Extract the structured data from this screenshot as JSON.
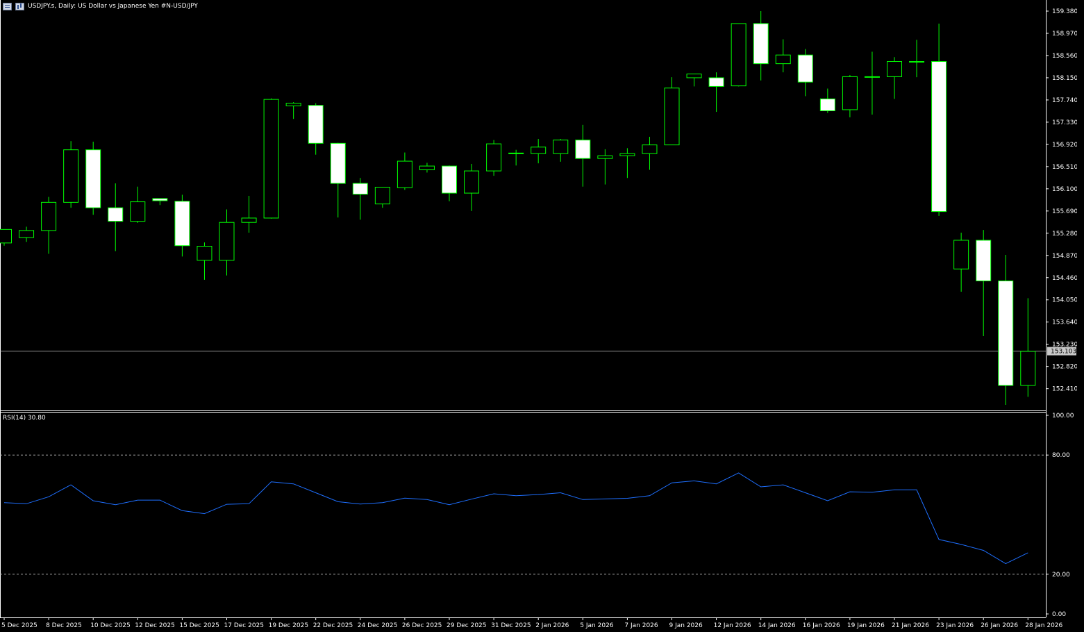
{
  "header": {
    "title": "USDJPY.s, Daily:  US Dollar vs  Japanese Yen #N-USD/JPY",
    "icons": [
      "chart-type-icon",
      "indicator-icon"
    ]
  },
  "colors": {
    "background": "#000000",
    "bull_body": "#000000",
    "bear_body": "#ffffff",
    "wick": "#00ff00",
    "rsi_line": "#1e6fff",
    "axis": "#ffffff",
    "grid_level": "#c0c0c0"
  },
  "price_axis": {
    "ticks": [
      "159.380",
      "158.970",
      "158.560",
      "158.150",
      "157.740",
      "157.330",
      "156.920",
      "156.510",
      "156.100",
      "155.690",
      "155.280",
      "154.870",
      "154.460",
      "154.050",
      "153.640",
      "153.230",
      "152.820",
      "152.410"
    ],
    "current_price": "153.103"
  },
  "rsi": {
    "label": "RSI(14) 30.80",
    "levels": [
      "100.00",
      "80.00",
      "20.00",
      "0.00"
    ]
  },
  "chart_data": {
    "type": "candlestick",
    "title": "USDJPY.s, Daily:  US Dollar vs  Japanese Yen #N-USD/JPY",
    "ylim": [
      152.1,
      159.5
    ],
    "x_tick_labels": [
      "5 Dec 2025",
      "8 Dec 2025",
      "10 Dec 2025",
      "12 Dec 2025",
      "15 Dec 2025",
      "17 Dec 2025",
      "19 Dec 2025",
      "22 Dec 2025",
      "24 Dec 2025",
      "26 Dec 2025",
      "29 Dec 2025",
      "31 Dec 2025",
      "2 Jan 2026",
      "5 Jan 2026",
      "7 Jan 2026",
      "9 Jan 2026",
      "12 Jan 2026",
      "14 Jan 2026",
      "16 Jan 2026",
      "19 Jan 2026",
      "21 Jan 2026",
      "23 Jan 2026",
      "26 Jan 2026",
      "28 Jan 2026"
    ],
    "candles": [
      {
        "o": 155.1,
        "h": 155.35,
        "l": 155.05,
        "c": 155.35
      },
      {
        "o": 155.2,
        "h": 155.4,
        "l": 155.12,
        "c": 155.33
      },
      {
        "o": 155.33,
        "h": 155.95,
        "l": 154.9,
        "c": 155.85
      },
      {
        "o": 155.85,
        "h": 156.98,
        "l": 155.75,
        "c": 156.82
      },
      {
        "o": 156.82,
        "h": 156.97,
        "l": 155.62,
        "c": 155.75
      },
      {
        "o": 155.75,
        "h": 156.2,
        "l": 154.95,
        "c": 155.5
      },
      {
        "o": 155.5,
        "h": 156.14,
        "l": 155.47,
        "c": 155.86
      },
      {
        "o": 155.92,
        "h": 155.92,
        "l": 155.8,
        "c": 155.88
      },
      {
        "o": 155.87,
        "h": 155.99,
        "l": 154.85,
        "c": 155.05
      },
      {
        "o": 154.78,
        "h": 155.11,
        "l": 154.42,
        "c": 155.04
      },
      {
        "o": 154.78,
        "h": 155.72,
        "l": 154.5,
        "c": 155.48
      },
      {
        "o": 155.48,
        "h": 155.97,
        "l": 155.29,
        "c": 155.56
      },
      {
        "o": 155.56,
        "h": 157.77,
        "l": 155.55,
        "c": 157.75
      },
      {
        "o": 157.63,
        "h": 157.7,
        "l": 157.39,
        "c": 157.68
      },
      {
        "o": 157.64,
        "h": 157.68,
        "l": 156.73,
        "c": 156.94
      },
      {
        "o": 156.94,
        "h": 156.95,
        "l": 155.57,
        "c": 156.2
      },
      {
        "o": 156.2,
        "h": 156.3,
        "l": 155.53,
        "c": 156.0
      },
      {
        "o": 155.82,
        "h": 156.13,
        "l": 155.75,
        "c": 156.13
      },
      {
        "o": 156.12,
        "h": 156.77,
        "l": 156.08,
        "c": 156.61
      },
      {
        "o": 156.45,
        "h": 156.58,
        "l": 156.4,
        "c": 156.52
      },
      {
        "o": 156.52,
        "h": 156.53,
        "l": 155.87,
        "c": 156.02
      },
      {
        "o": 156.02,
        "h": 156.56,
        "l": 155.69,
        "c": 156.43
      },
      {
        "o": 156.43,
        "h": 157.0,
        "l": 156.34,
        "c": 156.93
      },
      {
        "o": 156.75,
        "h": 156.82,
        "l": 156.53,
        "c": 156.76
      },
      {
        "o": 156.75,
        "h": 157.02,
        "l": 156.57,
        "c": 156.87
      },
      {
        "o": 156.75,
        "h": 157.02,
        "l": 156.6,
        "c": 157.0
      },
      {
        "o": 157.0,
        "h": 157.28,
        "l": 156.14,
        "c": 156.66
      },
      {
        "o": 156.66,
        "h": 156.83,
        "l": 156.18,
        "c": 156.71
      },
      {
        "o": 156.71,
        "h": 156.85,
        "l": 156.3,
        "c": 156.75
      },
      {
        "o": 156.75,
        "h": 157.06,
        "l": 156.45,
        "c": 156.91
      },
      {
        "o": 156.91,
        "h": 158.16,
        "l": 156.91,
        "c": 157.96
      },
      {
        "o": 158.15,
        "h": 158.2,
        "l": 157.99,
        "c": 158.22
      },
      {
        "o": 158.15,
        "h": 158.25,
        "l": 157.52,
        "c": 157.99
      },
      {
        "o": 158.0,
        "h": 159.15,
        "l": 157.99,
        "c": 159.15
      },
      {
        "o": 159.15,
        "h": 159.38,
        "l": 158.1,
        "c": 158.41
      },
      {
        "o": 158.41,
        "h": 158.86,
        "l": 158.25,
        "c": 158.57
      },
      {
        "o": 158.57,
        "h": 158.68,
        "l": 157.81,
        "c": 158.07
      },
      {
        "o": 157.76,
        "h": 157.95,
        "l": 157.5,
        "c": 157.54
      },
      {
        "o": 157.56,
        "h": 158.2,
        "l": 157.42,
        "c": 158.17
      },
      {
        "o": 158.17,
        "h": 158.63,
        "l": 157.47,
        "c": 158.17
      },
      {
        "o": 158.17,
        "h": 158.53,
        "l": 157.76,
        "c": 158.45
      },
      {
        "o": 158.45,
        "h": 158.85,
        "l": 158.16,
        "c": 158.45
      },
      {
        "o": 158.45,
        "h": 159.15,
        "l": 155.6,
        "c": 155.68
      },
      {
        "o": 154.62,
        "h": 155.29,
        "l": 154.2,
        "c": 155.15
      },
      {
        "o": 155.15,
        "h": 155.34,
        "l": 153.38,
        "c": 154.4
      },
      {
        "o": 154.4,
        "h": 154.88,
        "l": 152.11,
        "c": 152.47
      },
      {
        "o": 152.47,
        "h": 154.08,
        "l": 152.26,
        "c": 153.1
      }
    ],
    "rsi_values": [
      56,
      55.5,
      59,
      65,
      57,
      55,
      57.3,
      57.3,
      52,
      50.5,
      55.2,
      55.5,
      66.5,
      65.5,
      61,
      56.5,
      55.3,
      56,
      58.3,
      57.6,
      55,
      57.8,
      60.5,
      59.5,
      60.1,
      61,
      57.6,
      57.9,
      58.2,
      59.5,
      66,
      67,
      65.5,
      71,
      64,
      65,
      61,
      57,
      61.5,
      61.3,
      62.5,
      62.5,
      37.5,
      35,
      32,
      25.3,
      30.8
    ]
  }
}
